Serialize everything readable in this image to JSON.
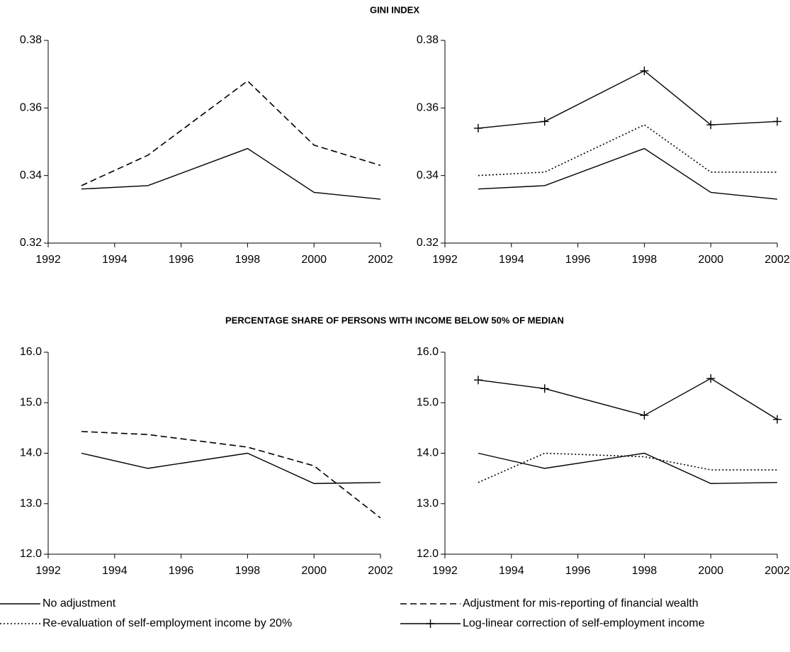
{
  "section_titles": [
    "GINI INDEX",
    "PERCENTAGE SHARE OF PERSONS WITH INCOME BELOW 50% OF MEDIAN"
  ],
  "chart_data": [
    {
      "type": "line",
      "x": [
        1993,
        1995,
        1998,
        2000,
        2002
      ],
      "xlim": [
        1992,
        2002
      ],
      "xticks": [
        1992,
        1994,
        1996,
        1998,
        2000,
        2002
      ],
      "ylim": [
        0.32,
        0.38
      ],
      "yticks": [
        0.32,
        0.34,
        0.36,
        0.38
      ],
      "series": [
        {
          "name": "No adjustment",
          "color": "#000000",
          "dash": "solid",
          "values": [
            0.336,
            0.337,
            0.348,
            0.335,
            0.333
          ]
        },
        {
          "name": "Adjustment for mis-reporting of financial wealth",
          "color": "#000000",
          "dash": "dashed",
          "values": [
            0.337,
            0.346,
            0.368,
            0.349,
            0.343
          ]
        }
      ]
    },
    {
      "type": "line",
      "x": [
        1993,
        1995,
        1998,
        2000,
        2002
      ],
      "xlim": [
        1992,
        2002
      ],
      "xticks": [
        1992,
        1994,
        1996,
        1998,
        2000,
        2002
      ],
      "ylim": [
        0.32,
        0.38
      ],
      "yticks": [
        0.32,
        0.34,
        0.36,
        0.38
      ],
      "series": [
        {
          "name": "No adjustment",
          "color": "#000000",
          "dash": "solid",
          "values": [
            0.336,
            0.337,
            0.348,
            0.335,
            0.333
          ]
        },
        {
          "name": "Re-evaluation of self-employment income by 20%",
          "color": "#000000",
          "dash": "dotted",
          "values": [
            0.34,
            0.341,
            0.355,
            0.341,
            0.341
          ]
        },
        {
          "name": "Log-linear correction of self-employment income",
          "color": "#000000",
          "dash": "solid",
          "marker": "plus",
          "values": [
            0.354,
            0.356,
            0.371,
            0.355,
            0.356
          ]
        }
      ]
    },
    {
      "type": "line",
      "x": [
        1993,
        1995,
        1998,
        2000,
        2002
      ],
      "xlim": [
        1992,
        2002
      ],
      "xticks": [
        1992,
        1994,
        1996,
        1998,
        2000,
        2002
      ],
      "ylim": [
        12,
        16
      ],
      "yticks": [
        {
          "value": 12,
          "label": "12.0"
        },
        {
          "value": 13,
          "label": "13.0"
        },
        {
          "value": 14,
          "label": "14.0"
        },
        {
          "value": 15,
          "label": "15.0"
        },
        {
          "value": 16,
          "label": "16.0"
        }
      ],
      "series": [
        {
          "name": "No adjustment",
          "color": "#000000",
          "dash": "solid",
          "values": [
            14.0,
            13.7,
            14.0,
            13.4,
            13.42
          ]
        },
        {
          "name": "Adjustment for mis-reporting of financial wealth",
          "color": "#000000",
          "dash": "dashed",
          "values": [
            14.43,
            14.37,
            14.12,
            13.75,
            12.72
          ]
        }
      ]
    },
    {
      "type": "line",
      "x": [
        1993,
        1995,
        1998,
        2000,
        2002
      ],
      "xlim": [
        1992,
        2002
      ],
      "xticks": [
        1992,
        1994,
        1996,
        1998,
        2000,
        2002
      ],
      "ylim": [
        12,
        16
      ],
      "yticks": [
        {
          "value": 12,
          "label": "12.0"
        },
        {
          "value": 13,
          "label": "13.0"
        },
        {
          "value": 14,
          "label": "14.0"
        },
        {
          "value": 15,
          "label": "15.0"
        },
        {
          "value": 16,
          "label": "16.0"
        }
      ],
      "series": [
        {
          "name": "No adjustment",
          "color": "#000000",
          "dash": "solid",
          "values": [
            14.0,
            13.7,
            14.0,
            13.4,
            13.42
          ]
        },
        {
          "name": "Re-evaluation of self-employment income by 20%",
          "color": "#000000",
          "dash": "dotted",
          "values": [
            13.42,
            14.0,
            13.93,
            13.67,
            13.67
          ]
        },
        {
          "name": "Log-linear correction of self-employment income",
          "color": "#000000",
          "dash": "solid",
          "marker": "plus",
          "values": [
            15.45,
            15.28,
            14.75,
            15.48,
            14.67
          ]
        }
      ]
    }
  ],
  "legend": "bottom"
}
